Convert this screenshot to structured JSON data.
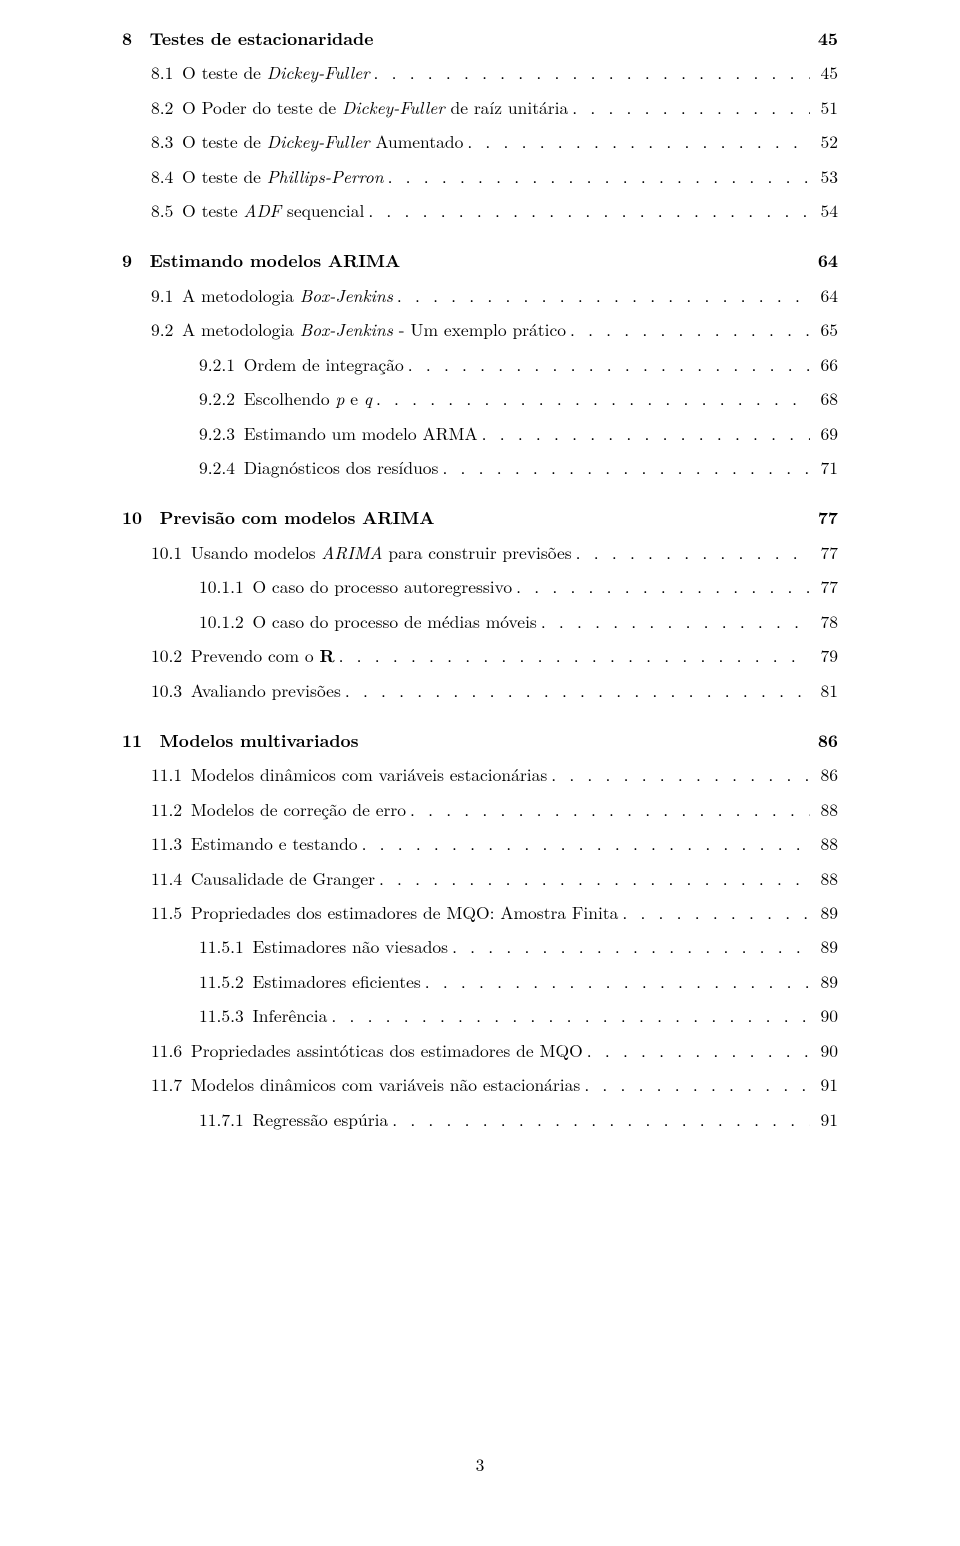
{
  "footer_page": "3",
  "chapters": [
    {
      "num": "8",
      "title": "Testes de estacionaridade",
      "page": "45",
      "sections": [
        {
          "num": "8.1",
          "plain": "O teste de ",
          "italic": "Dickey-Fuller",
          "tail": "",
          "page": "45",
          "level": 1
        },
        {
          "num": "8.2",
          "plain": "O Poder do teste de ",
          "italic": "Dickey-Fuller",
          "tail": " de raíz unitária",
          "page": "51",
          "level": 1
        },
        {
          "num": "8.3",
          "plain": "O teste de ",
          "italic": "Dickey-Fuller",
          "tail": " Aumentado",
          "page": "52",
          "level": 1
        },
        {
          "num": "8.4",
          "plain": "O teste de ",
          "italic": "Phillips-Perron",
          "tail": "",
          "page": "53",
          "level": 1
        },
        {
          "num": "8.5",
          "plain": "O teste ",
          "italic": "ADF",
          "tail": " sequencial",
          "page": "54",
          "level": 1
        }
      ]
    },
    {
      "num": "9",
      "title": "Estimando modelos ARIMA",
      "page": "64",
      "sections": [
        {
          "num": "9.1",
          "plain": "A metodologia ",
          "italic": "Box-Jenkins",
          "tail": "",
          "page": "64",
          "level": 1
        },
        {
          "num": "9.2",
          "plain": "A metodologia ",
          "italic": "Box-Jenkins",
          "tail": " - Um exemplo prático",
          "page": "65",
          "level": 1
        },
        {
          "num": "9.2.1",
          "plain": "Ordem de integração",
          "italic": "",
          "tail": "",
          "page": "66",
          "level": 2
        },
        {
          "num": "9.2.2",
          "plain": "Escolhendo ",
          "italic": "p",
          "tail": " e ",
          "italic2": "q",
          "page": "68",
          "level": 2
        },
        {
          "num": "9.2.3",
          "plain": "Estimando um modelo ARMA",
          "italic": "",
          "tail": "",
          "page": "69",
          "level": 2
        },
        {
          "num": "9.2.4",
          "plain": "Diagnósticos dos resíduos",
          "italic": "",
          "tail": "",
          "page": "71",
          "level": 2
        }
      ]
    },
    {
      "num": "10",
      "title": "Previsão com modelos ARIMA",
      "page": "77",
      "sections": [
        {
          "num": "10.1",
          "plain": "Usando modelos ",
          "italic": "ARIMA",
          "tail": " para construir previsões",
          "page": "77",
          "level": 1
        },
        {
          "num": "10.1.1",
          "plain": "O caso do processo autoregressivo",
          "italic": "",
          "tail": "",
          "page": "77",
          "level": 2
        },
        {
          "num": "10.1.2",
          "plain": "O caso do processo de médias móveis",
          "italic": "",
          "tail": "",
          "page": "78",
          "level": 2
        },
        {
          "num": "10.2",
          "plain": "Prevendo com o ",
          "bold": "R",
          "tail": "",
          "page": "79",
          "level": 1
        },
        {
          "num": "10.3",
          "plain": "Avaliando previsões",
          "italic": "",
          "tail": "",
          "page": "81",
          "level": 1
        }
      ]
    },
    {
      "num": "11",
      "title": "Modelos multivariados",
      "page": "86",
      "sections": [
        {
          "num": "11.1",
          "plain": "Modelos dinâmicos com variáveis estacionárias",
          "italic": "",
          "tail": "",
          "page": "86",
          "level": 1
        },
        {
          "num": "11.2",
          "plain": "Modelos de correção de erro",
          "italic": "",
          "tail": "",
          "page": "88",
          "level": 1
        },
        {
          "num": "11.3",
          "plain": "Estimando e testando",
          "italic": "",
          "tail": "",
          "page": "88",
          "level": 1
        },
        {
          "num": "11.4",
          "plain": "Causalidade de Granger",
          "italic": "",
          "tail": "",
          "page": "88",
          "level": 1
        },
        {
          "num": "11.5",
          "plain": "Propriedades dos estimadores de MQO: Amostra Finita",
          "italic": "",
          "tail": "",
          "page": "89",
          "level": 1
        },
        {
          "num": "11.5.1",
          "plain": "Estimadores não viesados",
          "italic": "",
          "tail": "",
          "page": "89",
          "level": 2
        },
        {
          "num": "11.5.2",
          "plain": "Estimadores eficientes",
          "italic": "",
          "tail": "",
          "page": "89",
          "level": 2
        },
        {
          "num": "11.5.3",
          "plain": "Inferência",
          "italic": "",
          "tail": "",
          "page": "90",
          "level": 2
        },
        {
          "num": "11.6",
          "plain": "Propriedades assintóticas dos estimadores de MQO",
          "italic": "",
          "tail": "",
          "page": "90",
          "level": 1
        },
        {
          "num": "11.7",
          "plain": "Modelos dinâmicos com variáveis não estacionárias",
          "italic": "",
          "tail": "",
          "page": "91",
          "level": 1
        },
        {
          "num": "11.7.1",
          "plain": "Regressão espúria",
          "italic": "",
          "tail": "",
          "page": "91",
          "level": 2
        }
      ]
    }
  ]
}
